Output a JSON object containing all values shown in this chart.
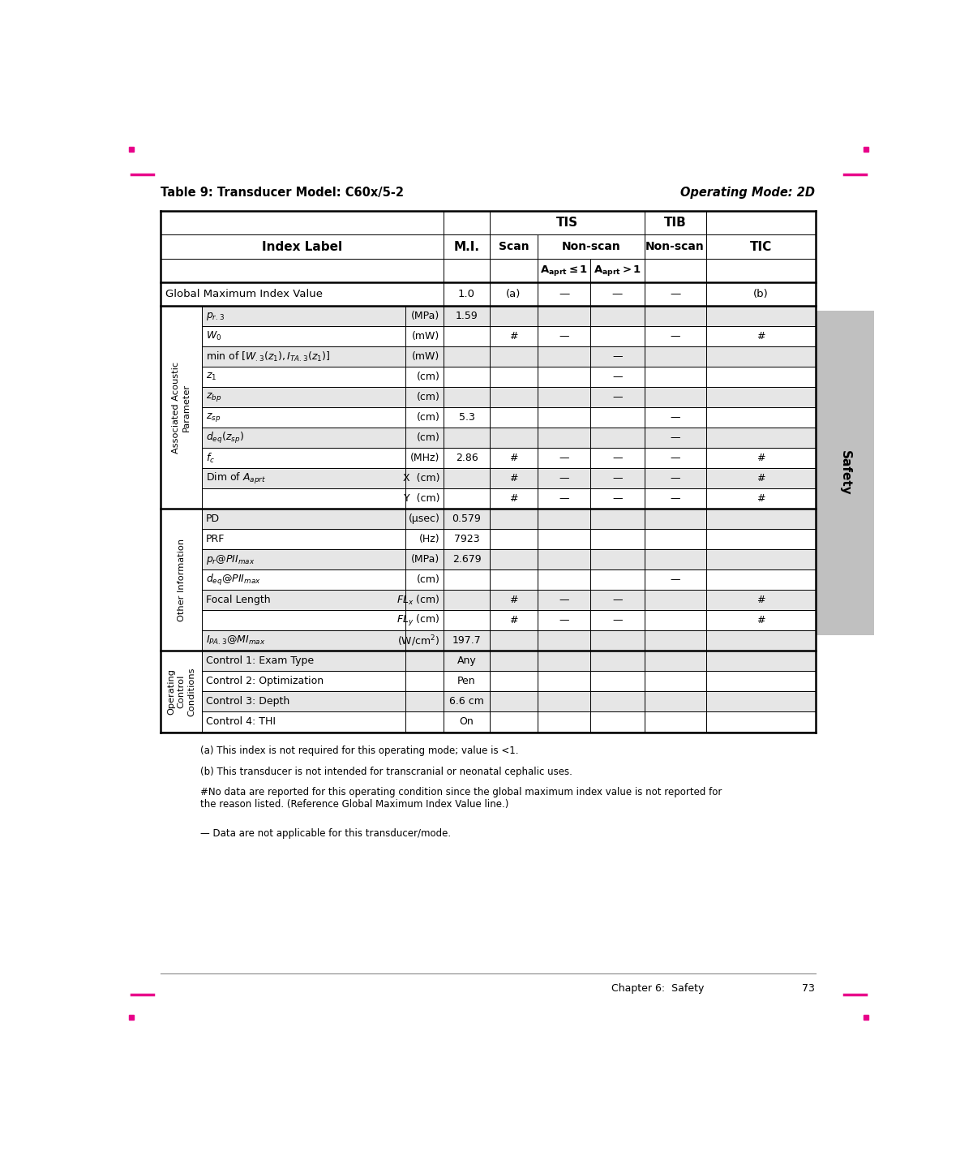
{
  "title_left": "Table 9: Transducer Model: C60x/5-2",
  "title_right": "Operating Mode: 2D",
  "sidebar_text": "Safety",
  "footnotes": [
    "(a) This index is not required for this operating mode; value is <1.",
    "(b) This transducer is not intended for transcranial or neonatal cephalic uses.",
    "#No data are reported for this operating condition since the global maximum index value is not reported for the reason listed. (Reference Global Maximum Index Value line.)",
    "— Data are not applicable for this transducer/mode."
  ],
  "bg_light": "#e6e6e6",
  "bg_white": "#ffffff",
  "bg_global": "#ffffff",
  "sidebar_color": "#c0c0c0",
  "thick_lw": 1.8,
  "thin_lw": 0.7
}
